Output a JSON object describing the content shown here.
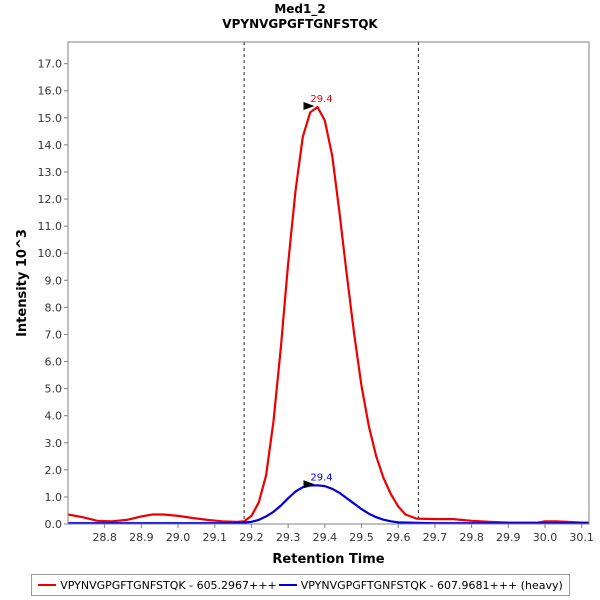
{
  "chart_data": {
    "type": "line",
    "title": "Med1_2",
    "subtitle": "VPYNVGPGFTGNFSTQK",
    "xlabel": "Retention Time",
    "ylabel": "Intensity 10^3",
    "xlim": [
      28.7,
      30.12
    ],
    "ylim": [
      0,
      17.8
    ],
    "x_ticks": [
      "28.8",
      "28.9",
      "29.0",
      "29.1",
      "29.2",
      "29.3",
      "29.4",
      "29.5",
      "29.6",
      "29.7",
      "29.8",
      "29.9",
      "30.0",
      "30.1"
    ],
    "x_tick_values": [
      28.8,
      28.9,
      29.0,
      29.1,
      29.2,
      29.3,
      29.4,
      29.5,
      29.6,
      29.7,
      29.8,
      29.9,
      30.0,
      30.1
    ],
    "y_ticks": [
      "0.0",
      "1.0",
      "2.0",
      "3.0",
      "4.0",
      "5.0",
      "6.0",
      "7.0",
      "8.0",
      "9.0",
      "10.0",
      "11.0",
      "12.0",
      "13.0",
      "14.0",
      "15.0",
      "16.0",
      "17.0"
    ],
    "y_tick_values": [
      0,
      1,
      2,
      3,
      4,
      5,
      6,
      7,
      8,
      9,
      10,
      11,
      12,
      13,
      14,
      15,
      16,
      17
    ],
    "vlines": [
      29.18,
      29.655
    ],
    "series": [
      {
        "name": "VPYNVGPGFTGNFSTQK - 605.2967+++",
        "color": "#ee0000",
        "x": [
          28.7,
          28.74,
          28.78,
          28.82,
          28.86,
          28.9,
          28.93,
          28.96,
          29.0,
          29.04,
          29.08,
          29.12,
          29.16,
          29.18,
          29.2,
          29.22,
          29.24,
          29.26,
          29.28,
          29.3,
          29.32,
          29.34,
          29.36,
          29.38,
          29.4,
          29.42,
          29.44,
          29.46,
          29.48,
          29.5,
          29.52,
          29.54,
          29.56,
          29.58,
          29.6,
          29.62,
          29.65,
          29.7,
          29.75,
          29.8,
          29.85,
          29.9,
          29.95,
          29.98,
          30.0,
          30.03,
          30.06,
          30.1,
          30.12
        ],
        "values": [
          0.35,
          0.25,
          0.12,
          0.1,
          0.15,
          0.28,
          0.35,
          0.35,
          0.3,
          0.22,
          0.15,
          0.1,
          0.08,
          0.1,
          0.3,
          0.8,
          1.8,
          3.8,
          6.5,
          9.6,
          12.3,
          14.3,
          15.2,
          15.4,
          14.9,
          13.6,
          11.5,
          9.2,
          7.0,
          5.1,
          3.6,
          2.5,
          1.7,
          1.1,
          0.65,
          0.35,
          0.2,
          0.18,
          0.18,
          0.12,
          0.08,
          0.05,
          0.05,
          0.05,
          0.1,
          0.1,
          0.08,
          0.05,
          0.05
        ]
      },
      {
        "name": "VPYNVGPGFTGNFSTQK - 607.9681+++ (heavy)",
        "color": "#0000dd",
        "x": [
          28.7,
          28.8,
          28.9,
          29.0,
          29.1,
          29.15,
          29.18,
          29.2,
          29.22,
          29.24,
          29.26,
          29.28,
          29.3,
          29.32,
          29.34,
          29.36,
          29.38,
          29.4,
          29.42,
          29.44,
          29.46,
          29.48,
          29.5,
          29.52,
          29.54,
          29.56,
          29.58,
          29.6,
          29.65,
          29.7,
          29.8,
          29.9,
          30.0,
          30.12
        ],
        "values": [
          0.03,
          0.03,
          0.03,
          0.03,
          0.03,
          0.03,
          0.05,
          0.08,
          0.15,
          0.28,
          0.45,
          0.68,
          0.95,
          1.2,
          1.36,
          1.42,
          1.43,
          1.4,
          1.3,
          1.15,
          0.95,
          0.75,
          0.55,
          0.38,
          0.25,
          0.16,
          0.1,
          0.06,
          0.04,
          0.03,
          0.03,
          0.03,
          0.03,
          0.03
        ]
      }
    ],
    "annotations": [
      {
        "series": 0,
        "label": "29.4",
        "x": 29.38,
        "y": 15.4
      },
      {
        "series": 1,
        "label": "29.4",
        "x": 29.38,
        "y": 1.43
      }
    ]
  },
  "legend": {
    "items": [
      {
        "label": "VPYNVGPGFTGNFSTQK - 605.2967+++",
        "color": "#ee0000"
      },
      {
        "label": "VPYNVGPGFTGNFSTQK - 607.9681+++ (heavy)",
        "color": "#0000dd"
      }
    ]
  }
}
